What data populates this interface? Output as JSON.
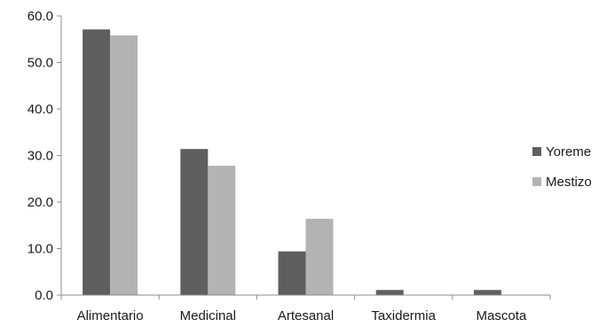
{
  "chart_data": {
    "type": "bar",
    "title": "",
    "xlabel": "",
    "ylabel": "",
    "categories": [
      "Alimentario",
      "Medicinal",
      "Artesanal",
      "Taxidermia",
      "Mascota"
    ],
    "series": [
      {
        "name": "Yoreme",
        "color": "#5f5f5f",
        "values": [
          57.1,
          31.4,
          9.4,
          1.1,
          1.1
        ]
      },
      {
        "name": "Mestizo",
        "color": "#b3b3b3",
        "values": [
          55.8,
          27.8,
          16.4,
          0.0,
          0.0
        ]
      }
    ],
    "ylim": [
      0,
      60
    ],
    "yticks": [
      "0.0",
      "10.0",
      "20.0",
      "30.0",
      "40.0",
      "50.0",
      "60.0"
    ],
    "grid": false,
    "legend_position": "right"
  }
}
